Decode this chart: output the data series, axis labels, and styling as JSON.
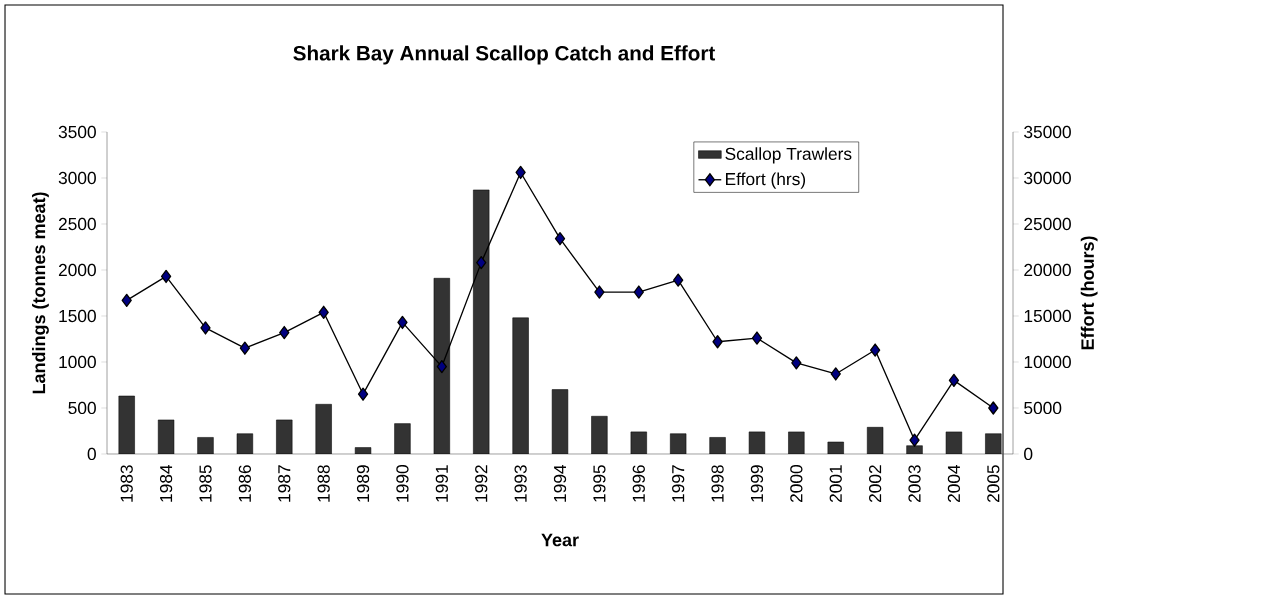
{
  "chart_data": {
    "type": "bar",
    "title": "Shark Bay Annual Scallop Catch and Effort",
    "xlabel": "Year",
    "ylabel": "Landings (tonnes meat)",
    "y2label": "Effort (hours)",
    "categories": [
      "1983",
      "1984",
      "1985",
      "1986",
      "1987",
      "1988",
      "1989",
      "1990",
      "1991",
      "1992",
      "1993",
      "1994",
      "1995",
      "1996",
      "1997",
      "1998",
      "1999",
      "2000",
      "2001",
      "2002",
      "2003",
      "2004",
      "2005"
    ],
    "series": [
      {
        "name": "Scallop Trawlers",
        "color": "#333333",
        "values": [
          630,
          370,
          180,
          220,
          370,
          540,
          70,
          330,
          1910,
          2870,
          1480,
          700,
          410,
          240,
          220,
          180,
          240,
          240,
          130,
          290,
          90,
          240,
          220
        ]
      },
      {
        "name": "Effort (hrs)",
        "type": "line",
        "axis": "y2",
        "color": "#000080",
        "marker": "diamond",
        "values": [
          16700,
          19300,
          13700,
          11500,
          13200,
          15400,
          6500,
          14300,
          9500,
          20800,
          30600,
          23400,
          17600,
          17600,
          18900,
          12200,
          12600,
          9900,
          8700,
          11300,
          1500,
          8000,
          5000
        ]
      }
    ],
    "ylim": [
      0,
      3500
    ],
    "yticks": [
      0,
      500,
      1000,
      1500,
      2000,
      2500,
      3000,
      3500
    ],
    "y2lim": [
      0,
      35000
    ],
    "y2ticks": [
      0,
      5000,
      10000,
      15000,
      20000,
      25000,
      30000,
      35000
    ],
    "legend": "top right",
    "grid": false
  }
}
